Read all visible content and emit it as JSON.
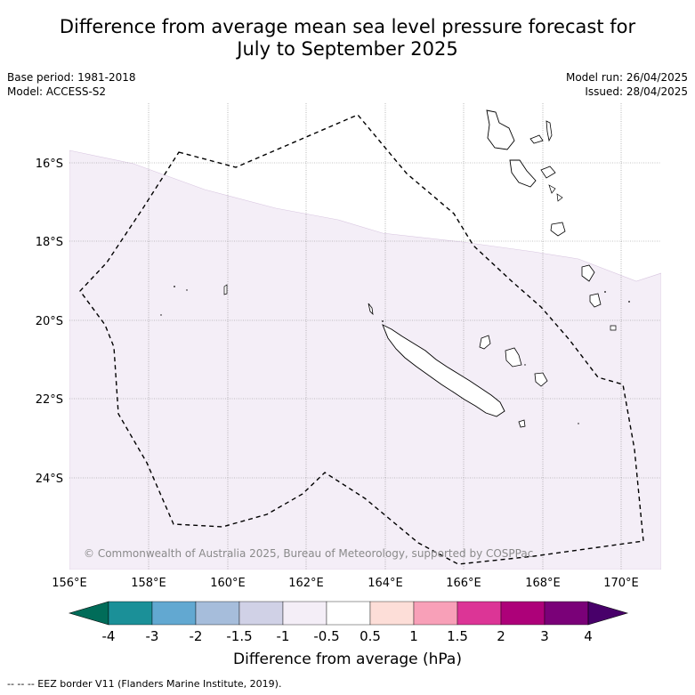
{
  "title_line1": "Difference from average mean sea level pressure forecast for",
  "title_line2": "July to September 2025",
  "base_period": "Base period: 1981-2018",
  "model": "Model: ACCESS-S2",
  "model_run": "Model run: 26/04/2025",
  "issued": "Issued: 28/04/2025",
  "copyright": "© Commonwealth of Australia 2025, Bureau of Meteorology, supported by COSPPac",
  "lon_ticks": [
    "156°E",
    "158°E",
    "160°E",
    "162°E",
    "164°E",
    "166°E",
    "168°E",
    "170°E"
  ],
  "lat_ticks": [
    "16°S",
    "18°S",
    "20°S",
    "22°S",
    "24°S"
  ],
  "colorbar": {
    "title": "Difference from average (hPa)",
    "labels": [
      "-4",
      "-3",
      "-2",
      "-1.5",
      "-1",
      "-0.5",
      "0.5",
      "1",
      "1.5",
      "2",
      "3",
      "4"
    ],
    "colors": [
      "#1b9098",
      "#62a8d1",
      "#a6bddb",
      "#d0d1e6",
      "#f4eef7",
      "#ffffff",
      "#fdded8",
      "#f8a0b8",
      "#dc3596",
      "#ad0179",
      "#7a0178"
    ],
    "under_color": "#016c59",
    "over_color": "#48006a"
  },
  "footer": "--  --  -- EEZ border V11 (Flanders Marine Institute, 2019).",
  "colors": {
    "anomaly_fill": "#f4eef7"
  }
}
